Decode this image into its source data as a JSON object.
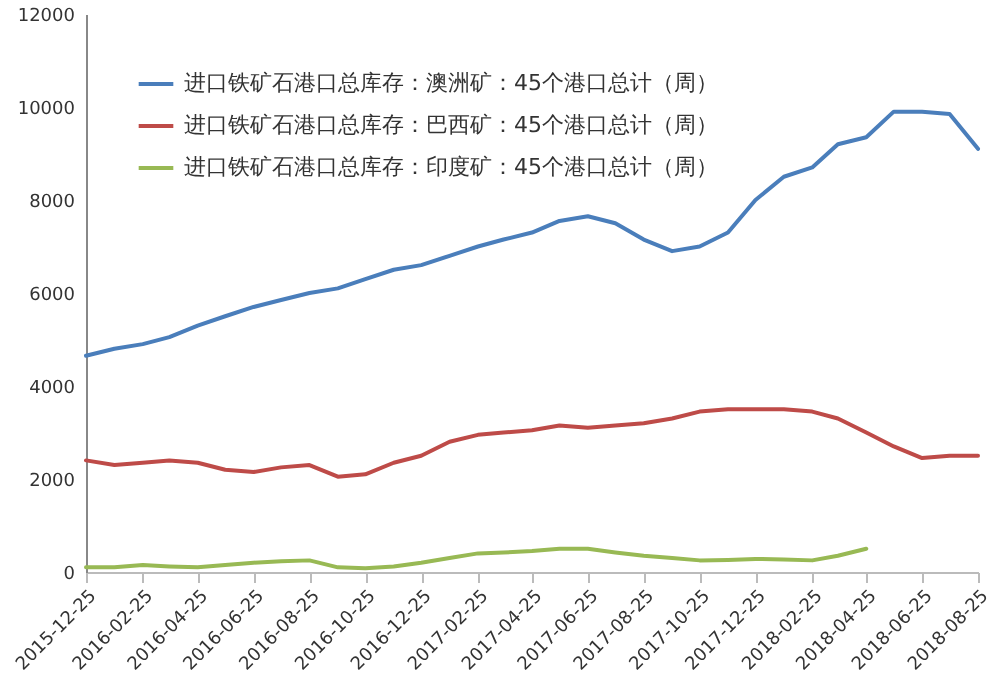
{
  "chart_data": {
    "type": "line",
    "legend": "top left",
    "x": [
      "2015-12-25",
      "2016-01-25",
      "2016-02-25",
      "2016-03-25",
      "2016-04-25",
      "2016-05-25",
      "2016-06-25",
      "2016-07-25",
      "2016-08-25",
      "2016-09-25",
      "2016-10-25",
      "2016-11-25",
      "2016-12-25",
      "2017-01-25",
      "2017-02-25",
      "2017-03-25",
      "2017-04-25",
      "2017-05-25",
      "2017-06-25",
      "2017-07-25",
      "2017-08-25",
      "2017-09-25",
      "2017-10-25",
      "2017-11-25",
      "2017-12-25",
      "2018-01-25",
      "2018-02-25",
      "2018-03-25",
      "2018-04-25",
      "2018-05-25",
      "2018-06-25",
      "2018-07-25",
      "2018-08-25"
    ],
    "series": [
      {
        "name": "进口铁矿石港口总库存：澳洲矿：45个港口总计（周）",
        "color": "#4a7ebb",
        "values": [
          4650,
          4800,
          4900,
          5050,
          5300,
          5500,
          5700,
          5850,
          6000,
          6100,
          6300,
          6500,
          6600,
          6800,
          7000,
          7150,
          7300,
          7550,
          7650,
          7500,
          7150,
          6900,
          7000,
          7300,
          8000,
          8500,
          8700,
          9200,
          9350,
          9900,
          9900,
          9850,
          9100
        ]
      },
      {
        "name": "进口铁矿石港口总库存：巴西矿：45个港口总计（周）",
        "color": "#be4b48",
        "values": [
          2400,
          2300,
          2350,
          2400,
          2350,
          2200,
          2150,
          2250,
          2300,
          2050,
          2100,
          2350,
          2500,
          2800,
          2950,
          3000,
          3050,
          3150,
          3100,
          3150,
          3200,
          3300,
          3450,
          3500,
          3500,
          3500,
          3450,
          3300,
          3000,
          2700,
          2450,
          2500,
          2500
        ]
      },
      {
        "name": "进口铁矿石港口总库存：印度矿：45个港口总计（周）",
        "color": "#98b954",
        "values": [
          100,
          100,
          150,
          120,
          100,
          150,
          200,
          230,
          250,
          100,
          80,
          120,
          200,
          300,
          400,
          420,
          450,
          500,
          500,
          420,
          350,
          300,
          250,
          260,
          280,
          270,
          250,
          350,
          500,
          null,
          null,
          null,
          null
        ]
      }
    ],
    "xlim": [
      "2015-12-25",
      "2018-08-25"
    ],
    "xticks": [
      "2015-12-25",
      "2016-02-25",
      "2016-04-25",
      "2016-06-25",
      "2016-08-25",
      "2016-10-25",
      "2016-12-25",
      "2017-02-25",
      "2017-04-25",
      "2017-06-25",
      "2017-08-25",
      "2017-10-25",
      "2017-12-25",
      "2018-02-25",
      "2018-04-25",
      "2018-06-25",
      "2018-08-25"
    ],
    "ylim": [
      0,
      12000
    ],
    "yticks": [
      0,
      2000,
      4000,
      6000,
      8000,
      10000,
      12000
    ]
  }
}
